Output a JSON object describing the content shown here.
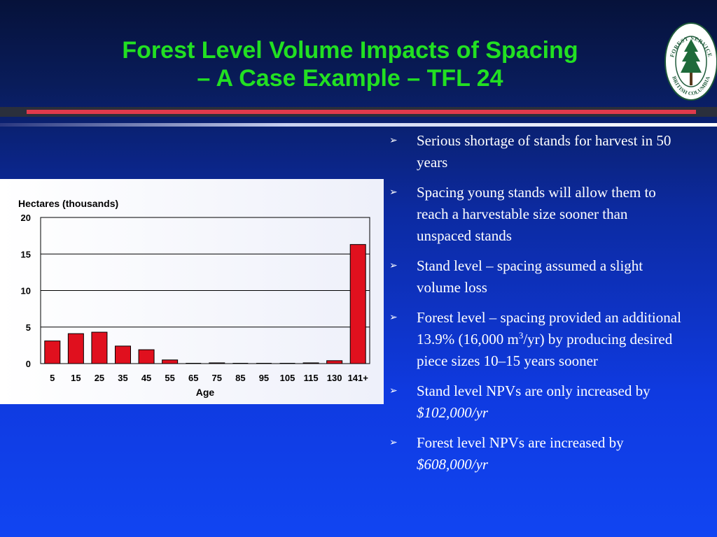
{
  "slide": {
    "title_line1": "Forest Level Volume Impacts of Spacing",
    "title_line2": "– A Case Example – TFL 24"
  },
  "logo": {
    "top_text": "FOREST SERVICE",
    "bottom_text": "BRITISH COLUMBIA",
    "icon": "tree-icon"
  },
  "bullets": [
    {
      "text": "Serious shortage of stands for harvest in 50 years"
    },
    {
      "text": "Spacing young stands will allow them to reach a harvestable size sooner than unspaced stands"
    },
    {
      "text": "Stand level – spacing assumed a slight volume loss"
    },
    {
      "pre": "Forest level – spacing provided an additional 13.9% (16,000 m",
      "sup": "3",
      "post": "/yr) by producing desired piece sizes 10–15 years sooner"
    },
    {
      "text": "Stand level NPVs are only increased by ",
      "em": "$102,000/yr"
    },
    {
      "text": "Forest level NPVs are increased by ",
      "em": "$608,000/yr"
    }
  ],
  "colors": {
    "title": "#22e022",
    "bar": "#e0101e",
    "bullet_text": "#ffffff"
  },
  "chart_data": {
    "type": "bar",
    "ylabel": "Hectares (thousands)",
    "xlabel": "Age",
    "categories": [
      "5",
      "15",
      "25",
      "35",
      "45",
      "55",
      "65",
      "75",
      "85",
      "95",
      "105",
      "115",
      "130",
      "141+"
    ],
    "values": [
      3.1,
      4.1,
      4.3,
      2.4,
      1.9,
      0.5,
      0.0,
      0.1,
      0.0,
      0.0,
      0.0,
      0.1,
      0.4,
      16.3
    ],
    "ylim": [
      0,
      20
    ],
    "yticks": [
      0,
      5,
      10,
      15,
      20
    ],
    "grid": true,
    "legend": "none"
  }
}
